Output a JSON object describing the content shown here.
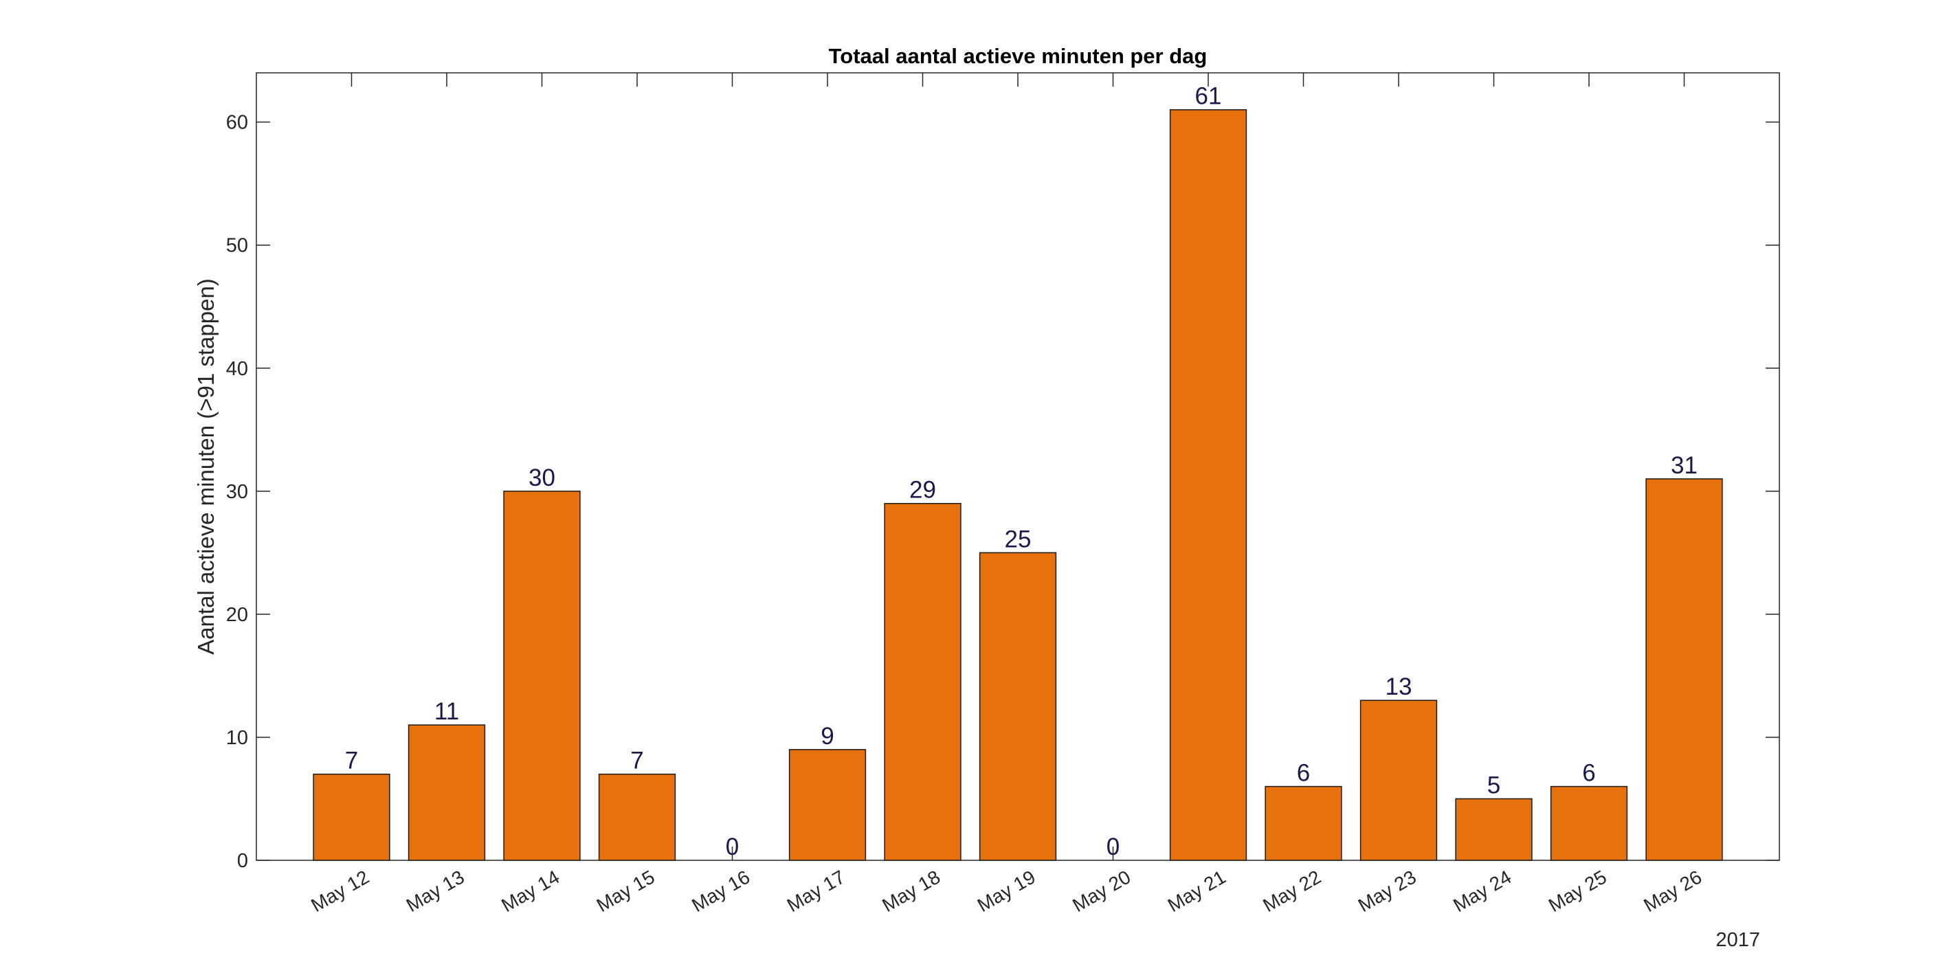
{
  "chart_data": {
    "type": "bar",
    "title": "Totaal aantal actieve minuten per dag",
    "xlabel": "",
    "ylabel": "Aantal actieve minuten (>91 stappen)",
    "year_label": "2017",
    "categories": [
      "May 12",
      "May 13",
      "May 14",
      "May 15",
      "May 16",
      "May 17",
      "May 18",
      "May 19",
      "May 20",
      "May 21",
      "May 22",
      "May 23",
      "May 24",
      "May 25",
      "May 26"
    ],
    "values": [
      7,
      11,
      30,
      7,
      0,
      9,
      29,
      25,
      0,
      61,
      6,
      13,
      5,
      6,
      31
    ],
    "yticks": [
      0,
      10,
      20,
      30,
      40,
      50,
      60
    ],
    "ylim": [
      0,
      64
    ],
    "grid": false,
    "bar_color": "#E6710D",
    "label_color": "#1A1A4A"
  }
}
